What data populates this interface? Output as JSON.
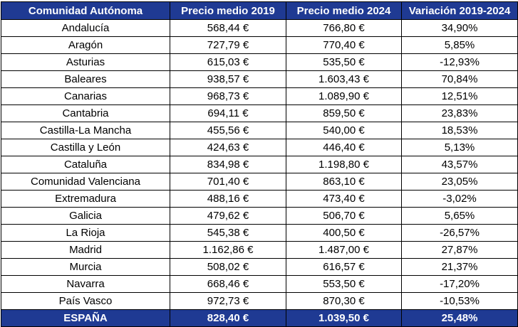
{
  "table": {
    "headers": [
      "Comunidad Autónoma",
      "Precio medio 2019",
      "Precio medio 2024",
      "Variación 2019-2024"
    ],
    "rows": [
      [
        "Andalucía",
        "568,44 €",
        "766,80 €",
        "34,90%"
      ],
      [
        "Aragón",
        "727,79 €",
        "770,40 €",
        "5,85%"
      ],
      [
        "Asturias",
        "615,03 €",
        "535,50 €",
        "-12,93%"
      ],
      [
        "Baleares",
        "938,57 €",
        "1.603,43 €",
        "70,84%"
      ],
      [
        "Canarias",
        "968,73 €",
        "1.089,90 €",
        "12,51%"
      ],
      [
        "Cantabria",
        "694,11 €",
        "859,50 €",
        "23,83%"
      ],
      [
        "Castilla-La Mancha",
        "455,56 €",
        "540,00 €",
        "18,53%"
      ],
      [
        "Castilla y León",
        "424,63 €",
        "446,40 €",
        "5,13%"
      ],
      [
        "Cataluña",
        "834,98 €",
        "1.198,80 €",
        "43,57%"
      ],
      [
        "Comunidad Valenciana",
        "701,40 €",
        "863,10 €",
        "23,05%"
      ],
      [
        "Extremadura",
        "488,16 €",
        "473,40 €",
        "-3,02%"
      ],
      [
        "Galicia",
        "479,62 €",
        "506,70 €",
        "5,65%"
      ],
      [
        "La Rioja",
        "545,38 €",
        "400,50 €",
        "-26,57%"
      ],
      [
        "Madrid",
        "1.162,86 €",
        "1.487,00 €",
        "27,87%"
      ],
      [
        "Murcia",
        "508,02 €",
        "616,57 €",
        "21,37%"
      ],
      [
        "Navarra",
        "668,46 €",
        "553,50 €",
        "-17,20%"
      ],
      [
        "País Vasco",
        "972,73 €",
        "870,30 €",
        "-10,53%"
      ]
    ],
    "total": [
      "ESPAÑA",
      "828,40 €",
      "1.039,50 €",
      "25,48%"
    ]
  },
  "colors": {
    "header_bg": "#1f3a93",
    "header_text": "#ffffff",
    "border": "#000000"
  }
}
